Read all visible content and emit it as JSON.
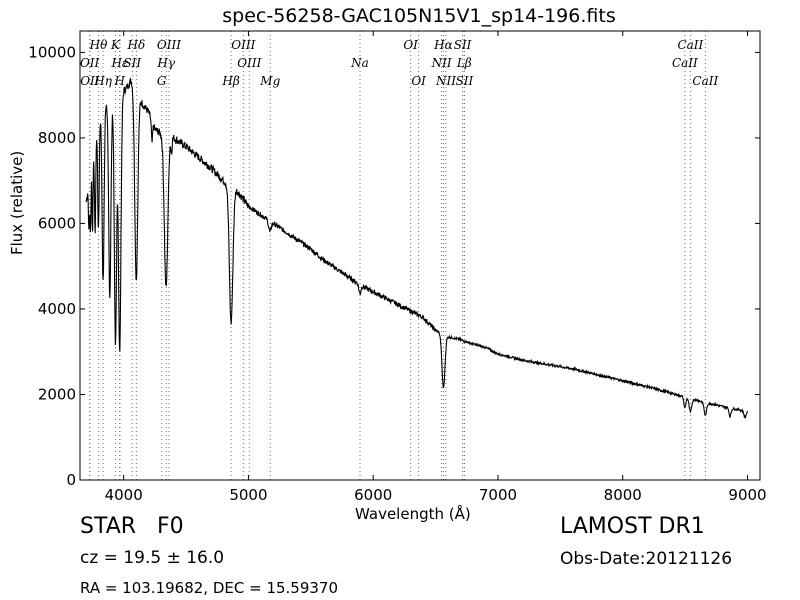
{
  "title": "spec-56258-GAC105N15V1_sp14-196.fits",
  "info": {
    "class": "STAR",
    "subclass": "F0",
    "cz": "cz = 19.5 ± 16.0",
    "survey": "LAMOST DR1",
    "obsdate": "Obs-Date:20121126",
    "radec": "RA = 103.19682, DEC = 15.59370"
  },
  "chart_data": {
    "type": "line",
    "title": "spec-56258-GAC105N15V1_sp14-196.fits",
    "xlabel": "Wavelength (Å)",
    "ylabel": "Flux (relative)",
    "xlim": [
      3650,
      9100
    ],
    "ylim": [
      0,
      10500
    ],
    "xticks": [
      4000,
      5000,
      6000,
      7000,
      8000,
      9000
    ],
    "yticks": [
      0,
      2000,
      4000,
      6000,
      8000,
      10000
    ],
    "grid": false,
    "continuum": [
      [
        3700,
        6500
      ],
      [
        3750,
        7600
      ],
      [
        3800,
        8500
      ],
      [
        3850,
        8800
      ],
      [
        3900,
        9000
      ],
      [
        3950,
        8900
      ],
      [
        4000,
        9100
      ],
      [
        4030,
        9200
      ],
      [
        4060,
        9350
      ],
      [
        4100,
        9100
      ],
      [
        4150,
        8800
      ],
      [
        4200,
        8600
      ],
      [
        4250,
        8200
      ],
      [
        4300,
        8100
      ],
      [
        4350,
        8200
      ],
      [
        4400,
        8000
      ],
      [
        4500,
        7800
      ],
      [
        4600,
        7550
      ],
      [
        4700,
        7300
      ],
      [
        4800,
        7000
      ],
      [
        4900,
        6800
      ],
      [
        5000,
        6400
      ],
      [
        5100,
        6200
      ],
      [
        5200,
        6000
      ],
      [
        5300,
        5800
      ],
      [
        5400,
        5600
      ],
      [
        5500,
        5400
      ],
      [
        5600,
        5150
      ],
      [
        5700,
        4950
      ],
      [
        5800,
        4750
      ],
      [
        5900,
        4550
      ],
      [
        6000,
        4400
      ],
      [
        6100,
        4250
      ],
      [
        6200,
        4100
      ],
      [
        6300,
        3950
      ],
      [
        6400,
        3800
      ],
      [
        6500,
        3500
      ],
      [
        6600,
        3350
      ],
      [
        6700,
        3280
      ],
      [
        6800,
        3180
      ],
      [
        6900,
        3100
      ],
      [
        7000,
        2950
      ],
      [
        7200,
        2800
      ],
      [
        7400,
        2700
      ],
      [
        7600,
        2600
      ],
      [
        7800,
        2460
      ],
      [
        8000,
        2320
      ],
      [
        8200,
        2180
      ],
      [
        8400,
        2020
      ],
      [
        8600,
        1860
      ],
      [
        8800,
        1720
      ],
      [
        9000,
        1600
      ]
    ],
    "absorption_features": [
      {
        "w": 3722,
        "depth": 1200,
        "width": 4
      },
      {
        "w": 3734,
        "depth": 1500,
        "width": 4
      },
      {
        "w": 3750,
        "depth": 1800,
        "width": 4
      },
      {
        "w": 3771,
        "depth": 2200,
        "width": 5
      },
      {
        "w": 3798,
        "depth": 2600,
        "width": 6
      },
      {
        "w": 3835,
        "depth": 4100,
        "width": 8
      },
      {
        "w": 3889,
        "depth": 4700,
        "width": 9
      },
      {
        "w": 3934,
        "depth": 5800,
        "width": 9
      },
      {
        "w": 3968,
        "depth": 6000,
        "width": 10
      },
      {
        "w": 4101,
        "depth": 4400,
        "width": 12
      },
      {
        "w": 4227,
        "depth": 500,
        "width": 5
      },
      {
        "w": 4340,
        "depth": 3700,
        "width": 14
      },
      {
        "w": 4383,
        "depth": 400,
        "width": 5
      },
      {
        "w": 4861,
        "depth": 3200,
        "width": 14
      },
      {
        "w": 5172,
        "depth": 250,
        "width": 10
      },
      {
        "w": 5893,
        "depth": 200,
        "width": 8
      },
      {
        "w": 6563,
        "depth": 1250,
        "width": 12
      },
      {
        "w": 8498,
        "depth": 250,
        "width": 8
      },
      {
        "w": 8542,
        "depth": 320,
        "width": 10
      },
      {
        "w": 8662,
        "depth": 300,
        "width": 10
      },
      {
        "w": 8860,
        "depth": 200,
        "width": 8
      },
      {
        "w": 8980,
        "depth": 150,
        "width": 8
      }
    ],
    "spectral_lines": [
      {
        "label": "Hθ",
        "w": 3798,
        "row": 0
      },
      {
        "label": "OII",
        "w": 3727,
        "row": 1
      },
      {
        "label": "OII",
        "w": 3729,
        "row": 2
      },
      {
        "label": "Hη",
        "w": 3835,
        "row": 2
      },
      {
        "label": "K",
        "w": 3934,
        "row": 0
      },
      {
        "label": "Hε",
        "w": 3970,
        "row": 1
      },
      {
        "label": "SII",
        "w": 4069,
        "row": 1
      },
      {
        "label": "H",
        "w": 3968,
        "row": 2
      },
      {
        "label": "Hδ",
        "w": 4102,
        "row": 0
      },
      {
        "label": "OIII",
        "w": 4363,
        "row": 0
      },
      {
        "label": "Hγ",
        "w": 4341,
        "row": 1
      },
      {
        "label": "G",
        "w": 4305,
        "row": 2
      },
      {
        "label": "OIII",
        "w": 4959,
        "row": 0
      },
      {
        "label": "OIII",
        "w": 5007,
        "row": 1
      },
      {
        "label": "Hβ",
        "w": 4861,
        "row": 2
      },
      {
        "label": "Mg",
        "w": 5175,
        "row": 2
      },
      {
        "label": "Na",
        "w": 5894,
        "row": 1
      },
      {
        "label": "OI",
        "w": 6300,
        "row": 0
      },
      {
        "label": "OI",
        "w": 6364,
        "row": 2
      },
      {
        "label": "Hα",
        "w": 6563,
        "row": 0
      },
      {
        "label": "SII",
        "w": 6716,
        "row": 0
      },
      {
        "label": "NII",
        "w": 6548,
        "row": 1
      },
      {
        "label": "Lβ",
        "w": 6730,
        "row": 1
      },
      {
        "label": "NII",
        "w": 6583,
        "row": 2
      },
      {
        "label": "SII",
        "w": 6731,
        "row": 2
      },
      {
        "label": "CaII",
        "w": 8542,
        "row": 0
      },
      {
        "label": "CaII",
        "w": 8498,
        "row": 1
      },
      {
        "label": "CaII",
        "w": 8662,
        "row": 2
      }
    ],
    "colors": {
      "spectrum": "#000000",
      "lines": "#2ca02c",
      "label": "#000000"
    }
  }
}
